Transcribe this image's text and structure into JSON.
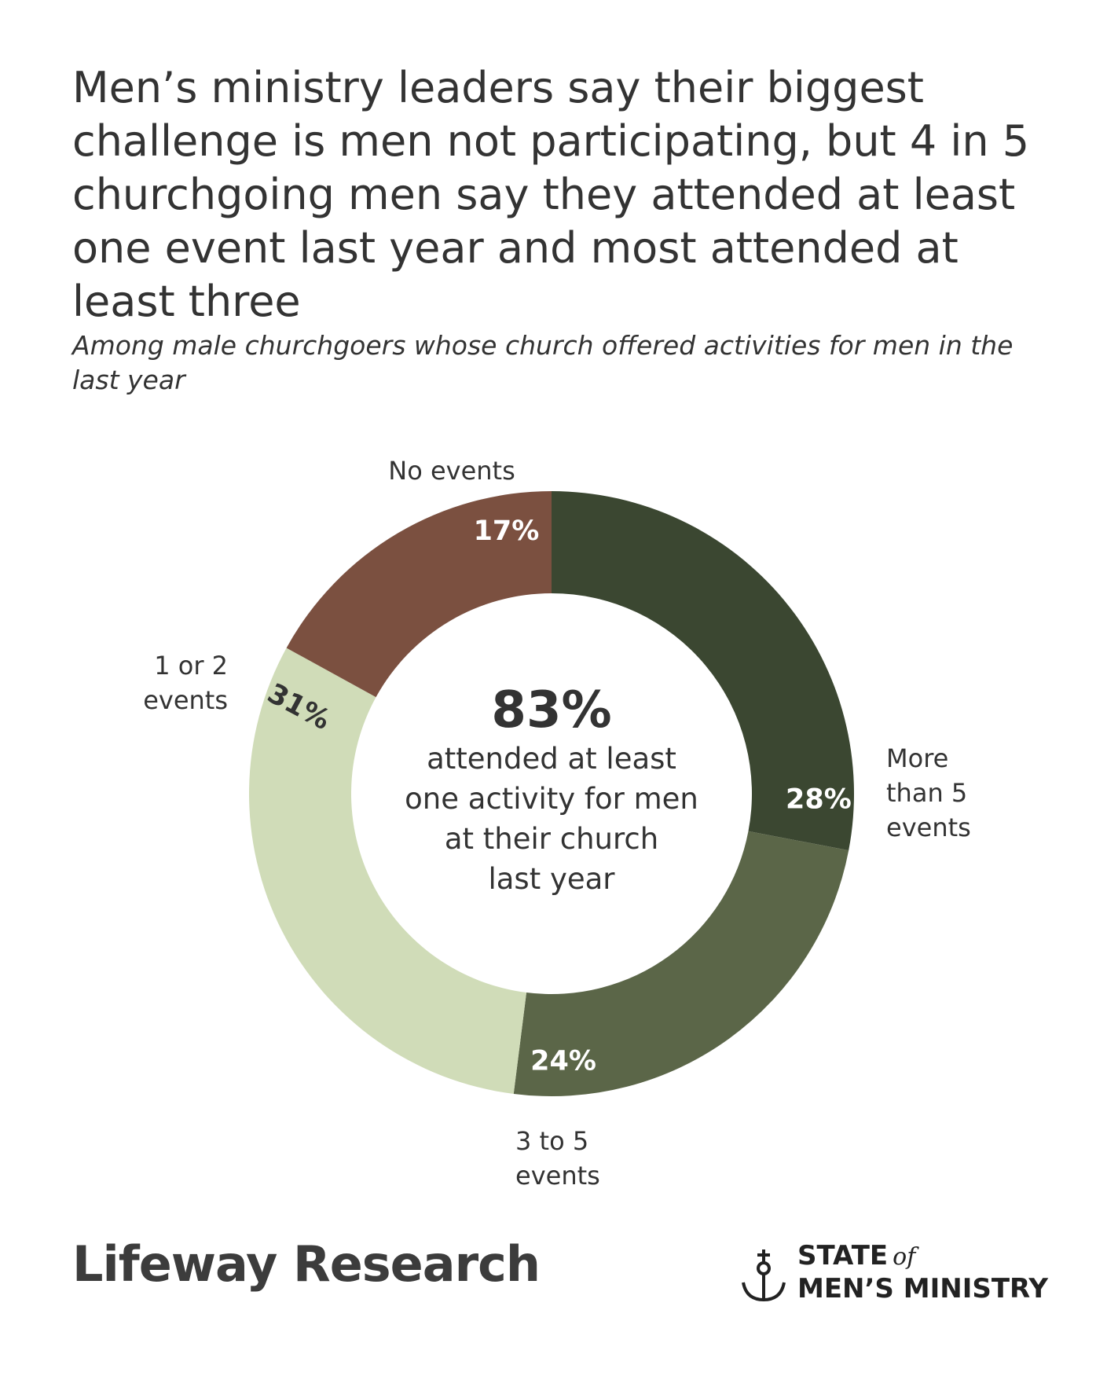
{
  "header": {
    "title": "Men’s ministry leaders say their biggest challenge is men not participating, but 4 in 5 churchgoing men say they attended at least one event last year and most attended at least three",
    "subtitle": "Among male churchgoers whose church offered activities for men in the last year"
  },
  "chart_data": {
    "type": "pie",
    "style": "donut",
    "slices": [
      {
        "label": "More than 5 events",
        "value": 28,
        "display": "28%",
        "color": "#3b4731",
        "text_color": "#ffffff"
      },
      {
        "label": "3 to 5 events",
        "value": 24,
        "display": "24%",
        "color": "#5b6648",
        "text_color": "#ffffff"
      },
      {
        "label": "1 or 2 events",
        "value": 31,
        "display": "31%",
        "color": "#d0dcb8",
        "text_color": "#333333"
      },
      {
        "label": "No events",
        "value": 17,
        "display": "17%",
        "color": "#7b5040",
        "text_color": "#ffffff"
      }
    ],
    "center": {
      "value": "83%",
      "lines": [
        "attended at least",
        "one activity for men",
        "at their church",
        "last year"
      ]
    }
  },
  "footer": {
    "logo_left": "Lifeway Research",
    "logo_right_line1": "STATE",
    "logo_right_of": "of",
    "logo_right_line2": "MEN’S MINISTRY"
  }
}
